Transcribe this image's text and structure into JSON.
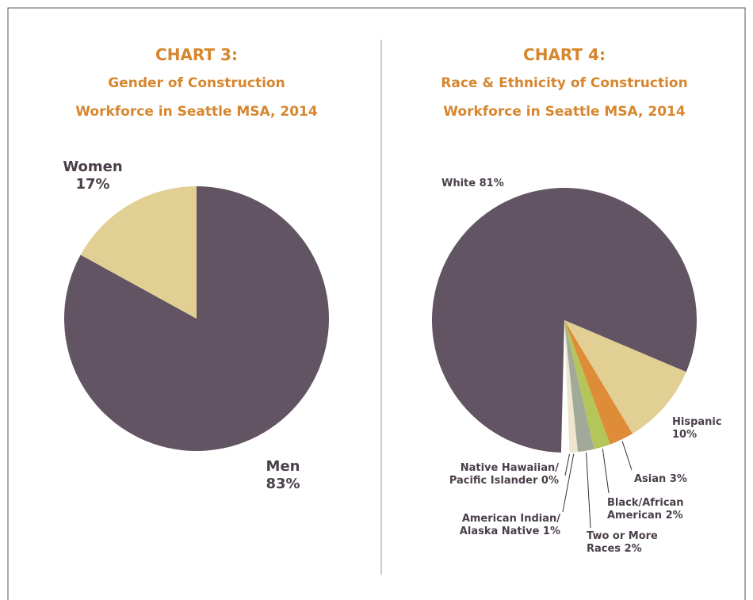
{
  "chart_data": [
    {
      "type": "pie",
      "title": "CHART 3:",
      "subtitle": [
        "Gender of Construction",
        "Workforce in Seattle MSA, 2014"
      ],
      "categories": [
        "Men",
        "Women"
      ],
      "values": [
        83,
        17
      ],
      "value_labels": [
        "83%",
        "17%"
      ],
      "colors": [
        "#625462",
        "#e2cf94"
      ]
    },
    {
      "type": "pie",
      "title": "CHART 4:",
      "subtitle": [
        "Race & Ethnicity of Construction",
        "Workforce in Seattle MSA, 2014"
      ],
      "categories": [
        "White",
        "Hispanic",
        "Asian",
        "Black/African American",
        "Two or More Races",
        "American Indian/ Alaska Native",
        "Native Hawaiian/ Pacific Islander"
      ],
      "values": [
        81,
        10,
        3,
        2,
        2,
        1,
        0
      ],
      "value_labels": [
        "81%",
        "10%",
        "3%",
        "2%",
        "2%",
        "1%",
        "0%"
      ],
      "colors": [
        "#625462",
        "#e2cf94",
        "#df8c39",
        "#b4c65a",
        "#a1aa99",
        "#ede6cc",
        "#f5f0df"
      ]
    }
  ]
}
